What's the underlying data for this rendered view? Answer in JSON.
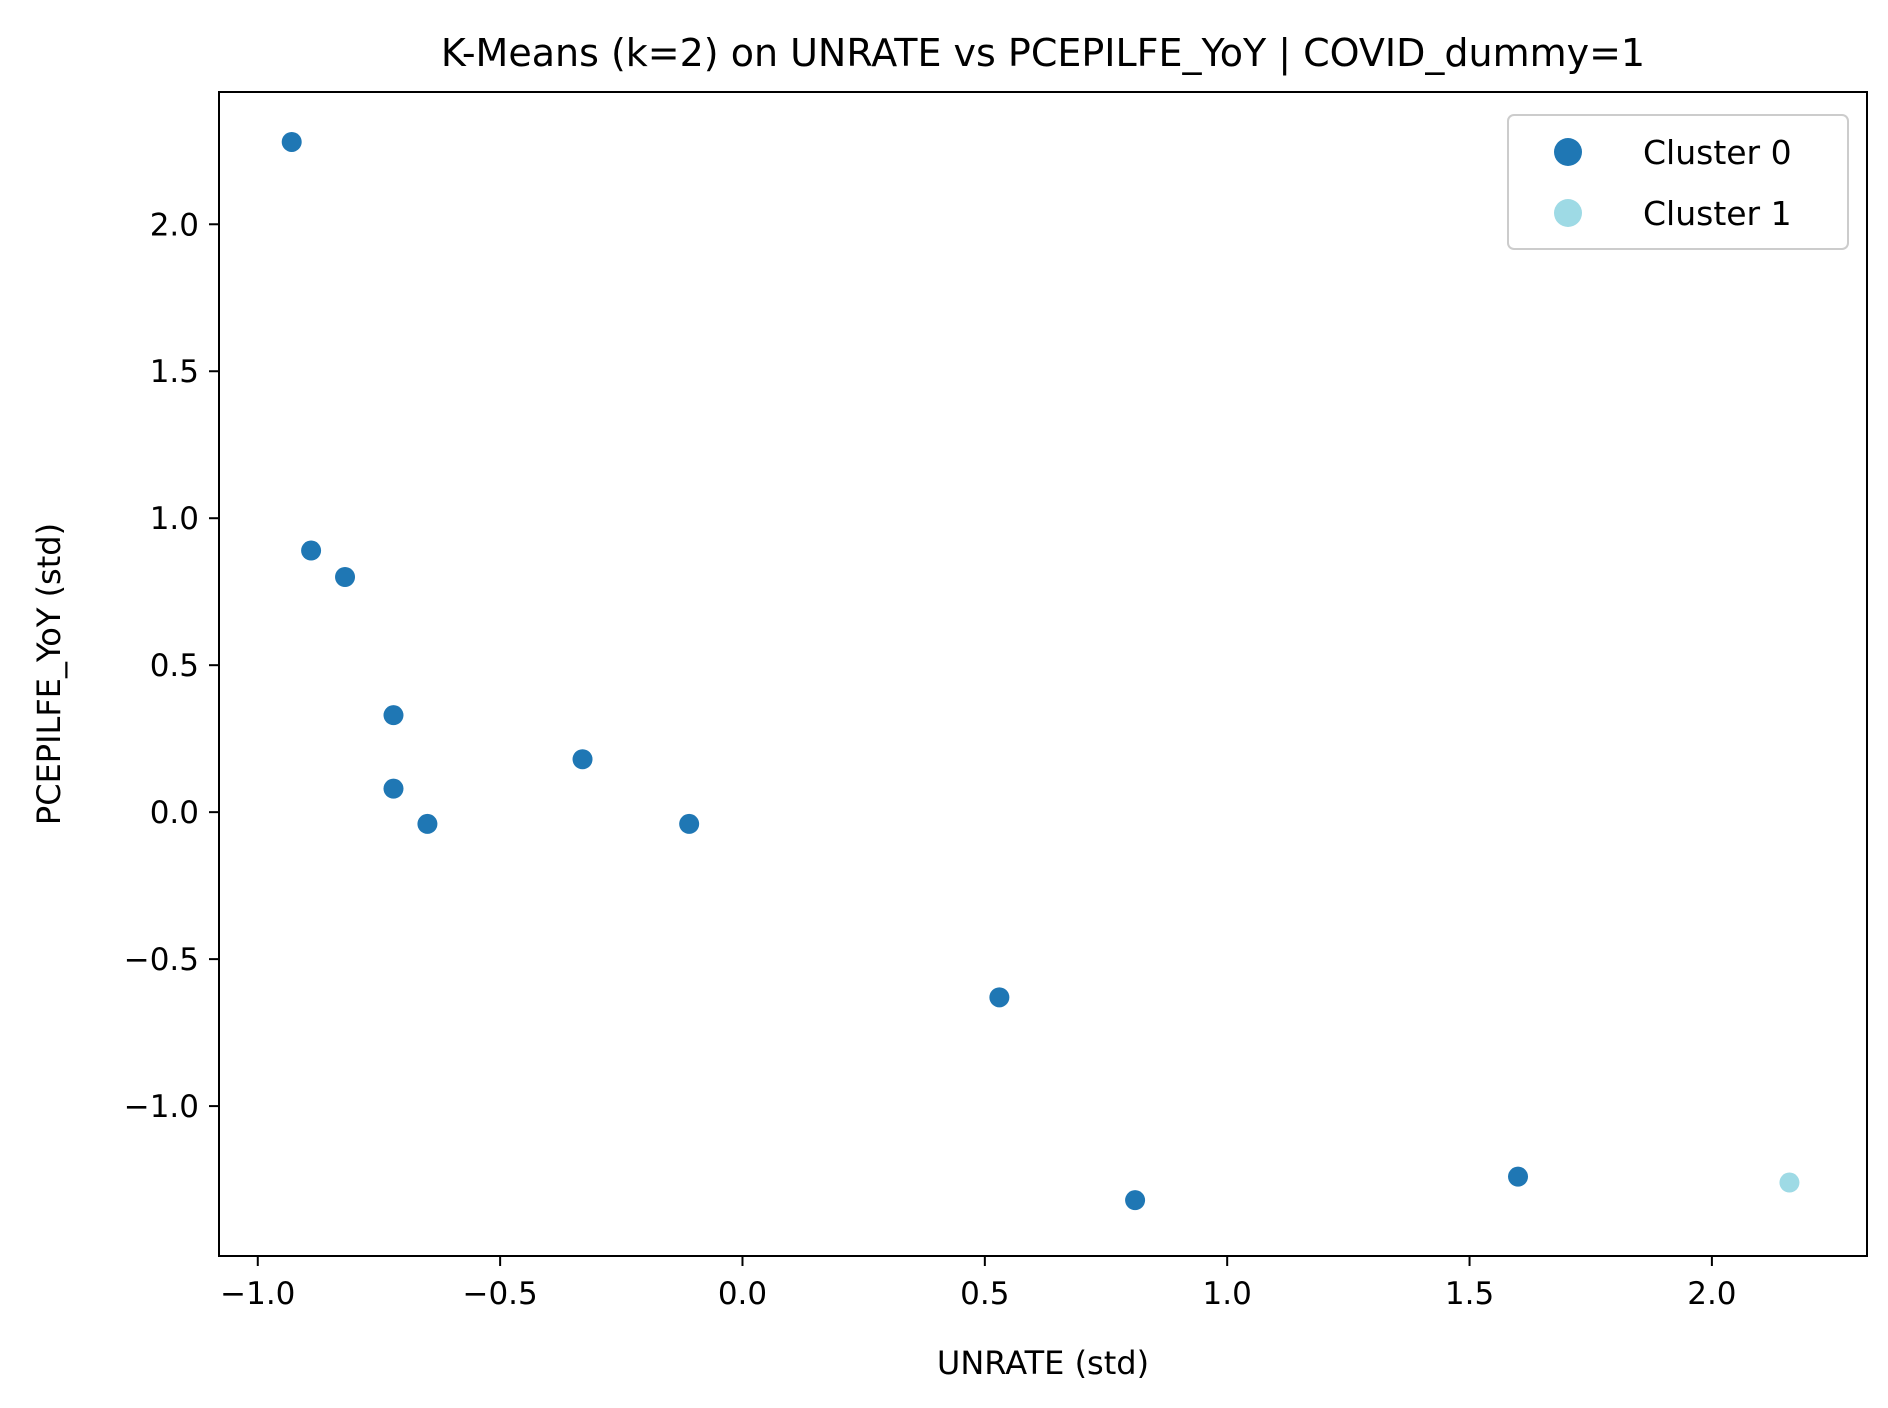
{
  "chart_data": {
    "type": "scatter",
    "title": "K-Means (k=2) on UNRATE vs PCEPILFE_YoY | COVID_dummy=1",
    "xlabel": "UNRATE (std)",
    "ylabel": "PCEPILFE_YoY (std)",
    "xlim": [
      -1.08,
      2.32
    ],
    "ylim": [
      -1.51,
      2.45
    ],
    "xticks": [
      -1.0,
      -0.5,
      0.0,
      0.5,
      1.0,
      1.5,
      2.0
    ],
    "xtick_labels": [
      "−1.0",
      "−0.5",
      "0.0",
      "0.5",
      "1.0",
      "1.5",
      "2.0"
    ],
    "yticks": [
      -1.0,
      -0.5,
      0.0,
      0.5,
      1.0,
      1.5,
      2.0
    ],
    "ytick_labels": [
      "−1.0",
      "−0.5",
      "0.0",
      "0.5",
      "1.0",
      "1.5",
      "2.0"
    ],
    "grid": false,
    "legend_position": "top-right",
    "series": [
      {
        "name": "Cluster 0",
        "color": "#1f77b4",
        "points": [
          {
            "x": -0.93,
            "y": 2.28
          },
          {
            "x": -0.89,
            "y": 0.89
          },
          {
            "x": -0.82,
            "y": 0.8
          },
          {
            "x": -0.72,
            "y": 0.33
          },
          {
            "x": -0.72,
            "y": 0.08
          },
          {
            "x": -0.65,
            "y": -0.04
          },
          {
            "x": -0.33,
            "y": 0.18
          },
          {
            "x": -0.11,
            "y": -0.04
          },
          {
            "x": 0.53,
            "y": -0.63
          },
          {
            "x": 0.81,
            "y": -1.32
          },
          {
            "x": 1.6,
            "y": -1.24
          }
        ]
      },
      {
        "name": "Cluster 1",
        "color": "#9edae5",
        "points": [
          {
            "x": 2.16,
            "y": -1.26
          }
        ]
      }
    ]
  }
}
